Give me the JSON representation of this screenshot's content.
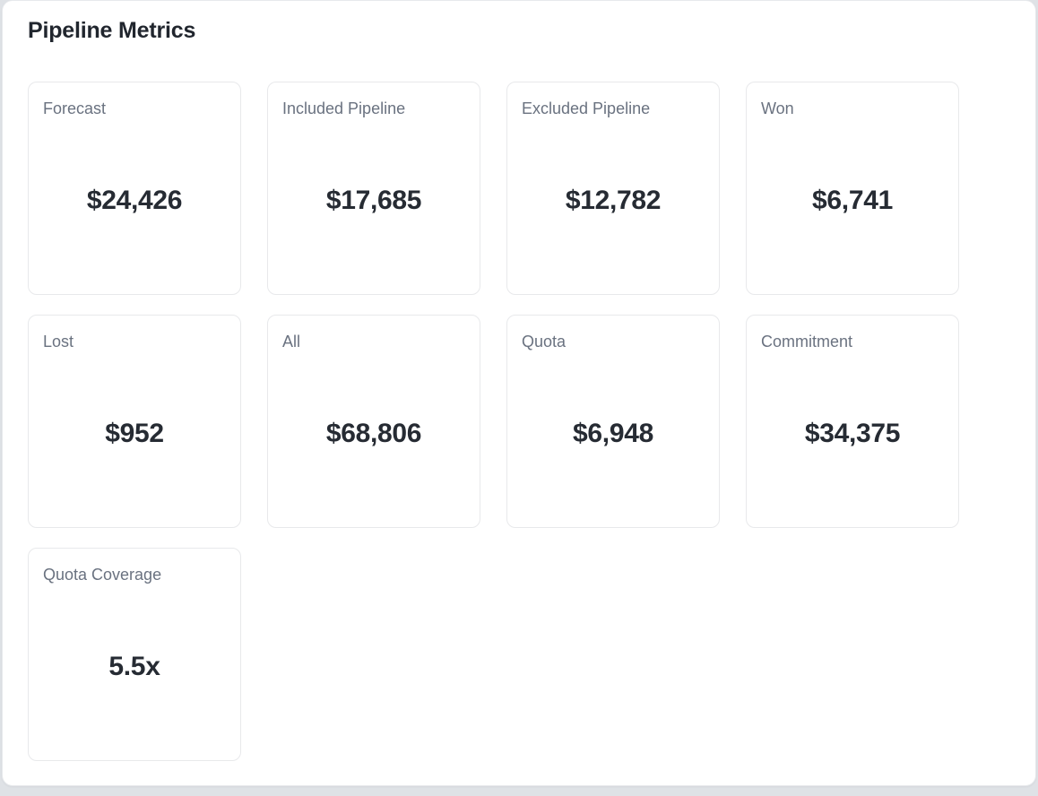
{
  "panel": {
    "title": "Pipeline Metrics",
    "metrics": [
      {
        "label": "Forecast",
        "value": "$24,426"
      },
      {
        "label": "Included Pipeline",
        "value": "$17,685"
      },
      {
        "label": "Excluded Pipeline",
        "value": "$12,782"
      },
      {
        "label": "Won",
        "value": "$6,741"
      },
      {
        "label": "Lost",
        "value": "$952"
      },
      {
        "label": "All",
        "value": "$68,806"
      },
      {
        "label": "Quota",
        "value": "$6,948"
      },
      {
        "label": "Commitment",
        "value": "$34,375"
      },
      {
        "label": "Quota Coverage",
        "value": "5.5x"
      }
    ]
  },
  "colors": {
    "page_background": "#dfe2e6",
    "panel_background": "#ffffff",
    "panel_border": "#e7e9ec",
    "card_border": "#e8e9eb",
    "title_text": "#21262e",
    "label_text": "#6a7280",
    "value_text": "#262b33"
  }
}
